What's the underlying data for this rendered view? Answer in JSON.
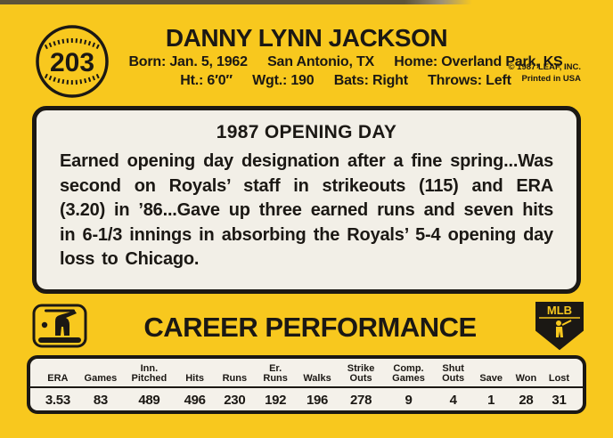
{
  "colors": {
    "card_yellow": "#F8C81E",
    "panel_white": "#F2EFE7",
    "ink_black": "#1B1814"
  },
  "header": {
    "card_number": "203",
    "player_name": "DANNY LYNN JACKSON",
    "bio_line1": [
      "Born: Jan. 5, 1962",
      "San Antonio, TX",
      "Home: Overland Park, KS"
    ],
    "bio_line2": [
      "Ht.: 6′0″",
      "Wgt.: 190",
      "Bats: Right",
      "Throws: Left"
    ],
    "copyright_line1": "© 1987 LEAF, INC.",
    "copyright_line2": "Printed in USA"
  },
  "highlight": {
    "title": "1987 OPENING DAY",
    "body": "Earned opening day designation after a fine spring...Was second on Royals’ staff in strikeouts (115) and ERA (3.20) in ’86...Gave up three earned runs and seven hits in 6-1/3 innings in absorbing the Royals’ 5-4 opening day loss to Chicago."
  },
  "career": {
    "heading": "CAREER PERFORMANCE",
    "shield_text": "MLB"
  },
  "stats_table": {
    "columns": [
      {
        "top": "",
        "bottom": "ERA"
      },
      {
        "top": "",
        "bottom": "Games"
      },
      {
        "top": "Inn.",
        "bottom": "Pitched"
      },
      {
        "top": "",
        "bottom": "Hits"
      },
      {
        "top": "",
        "bottom": "Runs"
      },
      {
        "top": "Er.",
        "bottom": "Runs"
      },
      {
        "top": "",
        "bottom": "Walks"
      },
      {
        "top": "Strike",
        "bottom": "Outs"
      },
      {
        "top": "Comp.",
        "bottom": "Games"
      },
      {
        "top": "Shut",
        "bottom": "Outs"
      },
      {
        "top": "",
        "bottom": "Save"
      },
      {
        "top": "",
        "bottom": "Won"
      },
      {
        "top": "",
        "bottom": "Lost"
      }
    ],
    "values": [
      "3.53",
      "83",
      "489",
      "496",
      "230",
      "192",
      "196",
      "278",
      "9",
      "4",
      "1",
      "28",
      "31"
    ]
  }
}
